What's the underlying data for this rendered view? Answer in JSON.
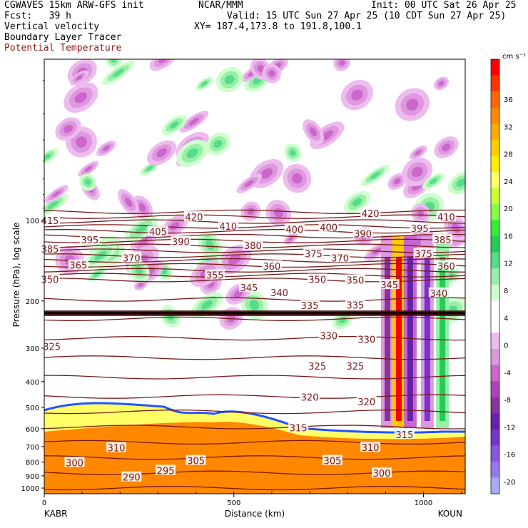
{
  "header": {
    "model_line": "CGWAVES 15km ARW-GFS init",
    "fcst_line": "Fcst:   39 h",
    "field1": "Vertical velocity",
    "field2": "Boundary Layer Tracer",
    "field3": "Potential Temperature",
    "org": "NCAR/MMM",
    "valid": "Valid: 15 UTC Sun 27 Apr 25 (10 CDT Sun 27 Apr 25)",
    "xy": "XY= 187.4,173.8 to 191.8,100.1",
    "init": "Init: 00 UTC Sat 26 Apr 25"
  },
  "chart_data": {
    "type": "heatmap",
    "title": "Vertical velocity / Boundary Layer Tracer / Potential Temperature cross-section",
    "xlabel": "Distance (km)",
    "ylabel": "Pressure (hPa), log scale",
    "x_range": [
      0,
      1110
    ],
    "y_range_hpa": [
      1050,
      25
    ],
    "y_scale": "log",
    "x_ticks": [
      0,
      500,
      1000
    ],
    "y_ticks": [
      100,
      200,
      300,
      400,
      500,
      600,
      700,
      800,
      900,
      1000
    ],
    "left_station": "KABR",
    "right_station": "KOUN",
    "colorbar": {
      "unit": "cm s⁻¹",
      "labels": [
        36,
        32,
        28,
        24,
        20,
        16,
        12,
        8,
        4,
        0,
        -4,
        -8,
        -12,
        -16,
        -20
      ],
      "colors": [
        "#ff0000",
        "#ff3300",
        "#ff6600",
        "#ff8800",
        "#ffaa00",
        "#ffcc00",
        "#ffee00",
        "#ffff66",
        "#ccff33",
        "#88ff44",
        "#33ee33",
        "#22cc55",
        "#55dd88",
        "#99eeaa",
        "#ccffcc",
        "#ffffff",
        "#ffffff",
        "#eebbee",
        "#dd99dd",
        "#cc66cc",
        "#aa44bb",
        "#883399",
        "#6622aa",
        "#7733cc",
        "#8855dd",
        "#9977ee",
        "#aaaaff"
      ]
    },
    "theta_labels": [
      {
        "value": 415,
        "x": 15,
        "p": 100
      },
      {
        "value": 420,
        "x": 395,
        "p": 97
      },
      {
        "value": 410,
        "x": 485,
        "p": 105
      },
      {
        "value": 420,
        "x": 860,
        "p": 94
      },
      {
        "value": 410,
        "x": 1060,
        "p": 97
      },
      {
        "value": 385,
        "x": 15,
        "p": 128
      },
      {
        "value": 395,
        "x": 120,
        "p": 118
      },
      {
        "value": 405,
        "x": 300,
        "p": 110
      },
      {
        "value": 390,
        "x": 360,
        "p": 120
      },
      {
        "value": 400,
        "x": 660,
        "p": 108
      },
      {
        "value": 400,
        "x": 750,
        "p": 106
      },
      {
        "value": 390,
        "x": 840,
        "p": 112
      },
      {
        "value": 395,
        "x": 990,
        "p": 107
      },
      {
        "value": 385,
        "x": 1050,
        "p": 118
      },
      {
        "value": 370,
        "x": 230,
        "p": 138
      },
      {
        "value": 380,
        "x": 550,
        "p": 124
      },
      {
        "value": 375,
        "x": 710,
        "p": 133
      },
      {
        "value": 370,
        "x": 780,
        "p": 138
      },
      {
        "value": 375,
        "x": 1000,
        "p": 133
      },
      {
        "value": 365,
        "x": 90,
        "p": 147
      },
      {
        "value": 360,
        "x": 600,
        "p": 148
      },
      {
        "value": 360,
        "x": 1060,
        "p": 148
      },
      {
        "value": 350,
        "x": 15,
        "p": 166
      },
      {
        "value": 355,
        "x": 450,
        "p": 160
      },
      {
        "value": 345,
        "x": 540,
        "p": 178
      },
      {
        "value": 340,
        "x": 620,
        "p": 186
      },
      {
        "value": 350,
        "x": 720,
        "p": 166
      },
      {
        "value": 350,
        "x": 820,
        "p": 167
      },
      {
        "value": 345,
        "x": 910,
        "p": 174
      },
      {
        "value": 340,
        "x": 1040,
        "p": 187
      },
      {
        "value": 335,
        "x": 700,
        "p": 208
      },
      {
        "value": 335,
        "x": 820,
        "p": 207
      },
      {
        "value": 325,
        "x": 20,
        "p": 296
      },
      {
        "value": 330,
        "x": 750,
        "p": 270
      },
      {
        "value": 330,
        "x": 850,
        "p": 278
      },
      {
        "value": 325,
        "x": 720,
        "p": 350
      },
      {
        "value": 325,
        "x": 820,
        "p": 350
      },
      {
        "value": 320,
        "x": 700,
        "p": 457
      },
      {
        "value": 320,
        "x": 850,
        "p": 475
      },
      {
        "value": 315,
        "x": 670,
        "p": 596
      },
      {
        "value": 315,
        "x": 950,
        "p": 630
      },
      {
        "value": 310,
        "x": 190,
        "p": 707
      },
      {
        "value": 310,
        "x": 860,
        "p": 705
      },
      {
        "value": 305,
        "x": 400,
        "p": 790
      },
      {
        "value": 305,
        "x": 760,
        "p": 790
      },
      {
        "value": 300,
        "x": 80,
        "p": 803
      },
      {
        "value": 295,
        "x": 320,
        "p": 860
      },
      {
        "value": 300,
        "x": 890,
        "p": 880
      },
      {
        "value": 290,
        "x": 230,
        "p": 910
      }
    ]
  }
}
